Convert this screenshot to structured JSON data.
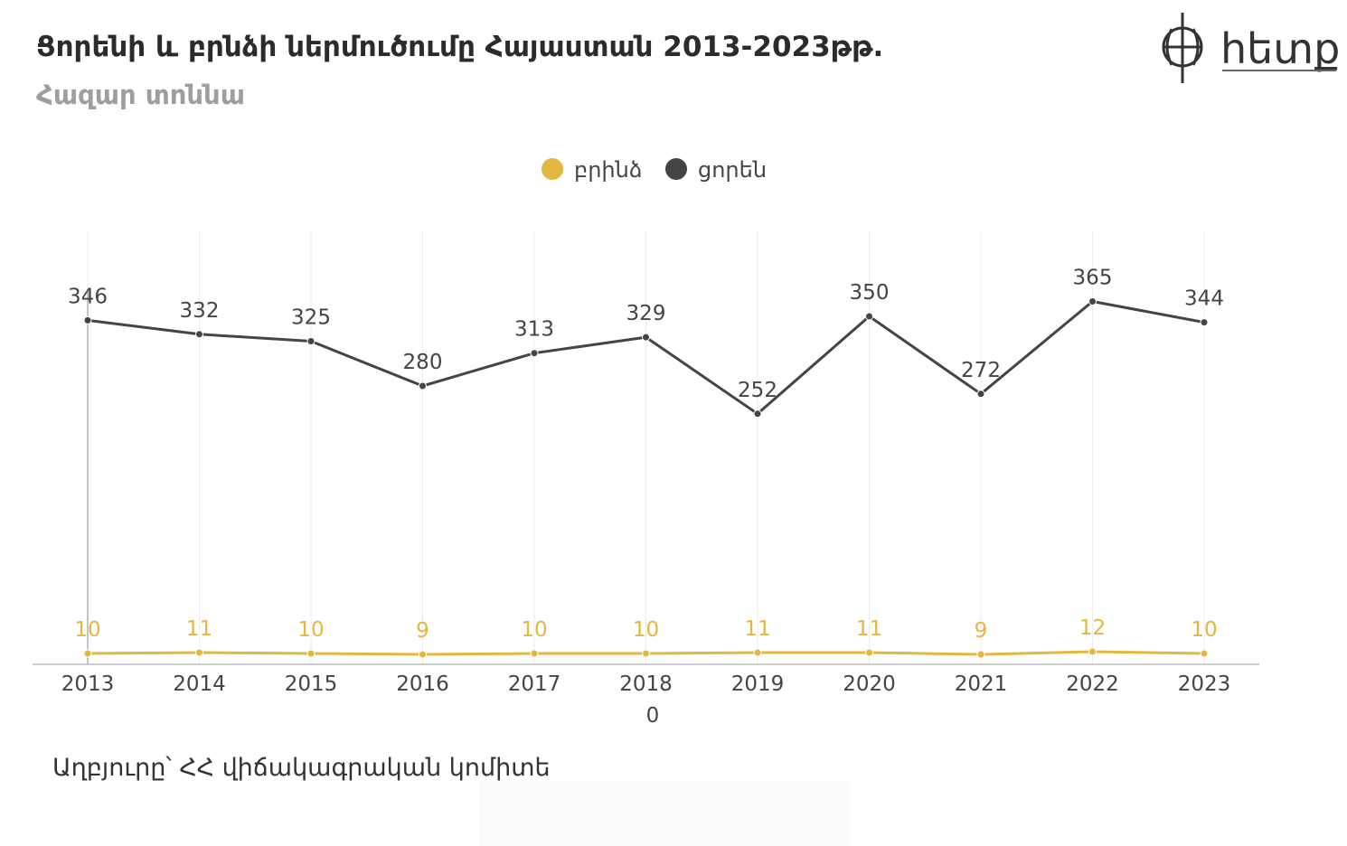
{
  "title": "Ցորենի և բրնձի ներմուծումը Հայաստան 2013-2023թթ.",
  "subtitle": "Հազար տոննա",
  "logo_text": "հետք",
  "source": "Աղբյուրը՝ ՀՀ վիճակագրական կոմիտե",
  "colors": {
    "rice": "#e3b740",
    "wheat": "#444444",
    "gridline": "#ececec",
    "axis": "#bbbbbb",
    "baseline": "#888888"
  },
  "chart_data": {
    "type": "line",
    "categories": [
      "2013",
      "2014",
      "2015",
      "2016",
      "2017",
      "2018",
      "2019",
      "2020",
      "2021",
      "2022",
      "2023"
    ],
    "series": [
      {
        "name": "բրինձ",
        "color": "#e3b740",
        "values": [
          10,
          11,
          10,
          9,
          10,
          10,
          11,
          11,
          9,
          12,
          10
        ]
      },
      {
        "name": "ցորեն",
        "color": "#444444",
        "values": [
          346,
          332,
          325,
          280,
          313,
          329,
          252,
          350,
          272,
          365,
          344
        ]
      }
    ],
    "ylim": [
      0,
      400
    ],
    "zero_label": "0",
    "legend_position": "top-center",
    "grid": "vertical",
    "data_labels": true
  }
}
